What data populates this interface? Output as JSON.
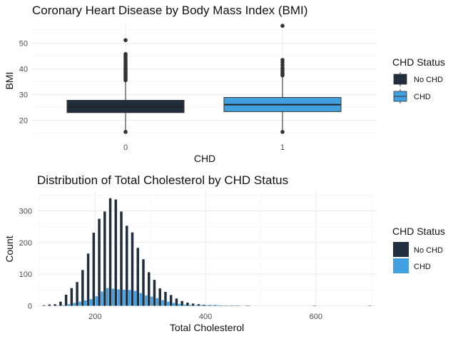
{
  "colors": {
    "no_chd": "#1f2d3d",
    "chd": "#41a0e0"
  },
  "chart_data": [
    {
      "type": "box",
      "title": "Coronary Heart Disease by Body Mass Index (BMI)",
      "xlabel": "CHD",
      "ylabel": "BMI",
      "categories": [
        "0",
        "1"
      ],
      "yticks": [
        20,
        30,
        40,
        50
      ],
      "ylim": [
        13.5,
        58.5
      ],
      "legend": {
        "title": "CHD Status",
        "position": "right",
        "labels": [
          "No CHD",
          "CHD"
        ]
      },
      "boxes": [
        {
          "category": "0",
          "series": "No CHD",
          "min": 15.5,
          "q1": 23,
          "median": 25.3,
          "q3": 27.8,
          "max": 35.2,
          "outliers": [
            35.6,
            36.2,
            36.8,
            37.3,
            37.9,
            38.4,
            38.9,
            39.5,
            40.0,
            40.6,
            41.2,
            41.9,
            42.6,
            43.4,
            44.2,
            45.0,
            45.8,
            51.2
          ]
        },
        {
          "category": "1",
          "series": "CHD",
          "min": 15.5,
          "q1": 23.4,
          "median": 26.1,
          "q3": 28.9,
          "max": 37.0,
          "outliers": [
            37.5,
            38.2,
            38.9,
            39.6,
            40.4,
            41.5,
            42.5,
            43.5,
            56.8
          ]
        }
      ]
    },
    {
      "type": "histogram",
      "title": "Distribution of Total Cholesterol by CHD Status",
      "xlabel": "Total Cholesterol",
      "ylabel": "Count",
      "xticks": [
        200,
        400,
        600
      ],
      "yticks": [
        0,
        100,
        200,
        300
      ],
      "xlim": [
        95,
        710
      ],
      "ylim": [
        -8,
        362
      ],
      "binwidth": 10,
      "legend": {
        "title": "CHD Status",
        "position": "right",
        "labels": [
          "No CHD",
          "CHD"
        ]
      },
      "x": [
        110,
        120,
        130,
        140,
        150,
        160,
        170,
        180,
        190,
        200,
        210,
        220,
        230,
        240,
        250,
        260,
        270,
        280,
        290,
        300,
        310,
        320,
        330,
        340,
        350,
        360,
        370,
        380,
        390,
        400,
        410,
        420,
        430,
        440,
        450,
        460,
        470,
        480,
        600,
        700
      ],
      "series": [
        {
          "name": "No CHD",
          "values": [
            2,
            4,
            5,
            13,
            35,
            56,
            75,
            113,
            165,
            231,
            275,
            298,
            340,
            336,
            298,
            253,
            232,
            183,
            147,
            106,
            82,
            55,
            44,
            34,
            23,
            15,
            10,
            7,
            5,
            3,
            2,
            2,
            1,
            1,
            1,
            1,
            0,
            1,
            1,
            1
          ]
        },
        {
          "name": "CHD",
          "values": [
            0,
            0,
            1,
            2,
            5,
            9,
            13,
            17,
            21,
            30,
            45,
            56,
            54,
            52,
            51,
            50,
            47,
            40,
            33,
            29,
            24,
            18,
            13,
            9,
            6,
            4,
            3,
            2,
            3,
            2,
            2,
            2,
            1,
            1,
            1,
            1,
            1,
            0,
            0,
            0
          ]
        }
      ]
    }
  ]
}
